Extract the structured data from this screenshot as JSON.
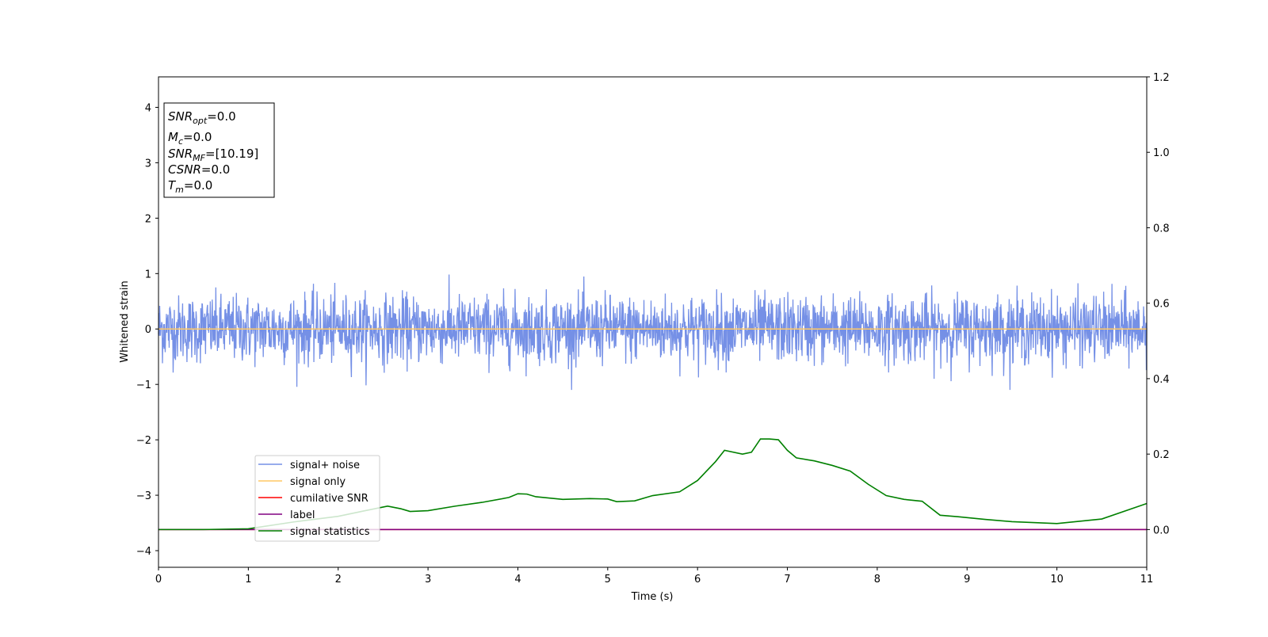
{
  "chart_data": {
    "type": "line",
    "xlabel": "Time (s)",
    "ylabel": "Whitened strain",
    "xlim": [
      0,
      11
    ],
    "ylim": [
      -4.3,
      4.55
    ],
    "y2lim": [
      -0.1,
      1.2
    ],
    "xticks": [
      "0",
      "1",
      "2",
      "3",
      "4",
      "5",
      "6",
      "7",
      "8",
      "9",
      "10",
      "11"
    ],
    "yticks": [
      "−4",
      "−3",
      "−2",
      "−1",
      "0",
      "1",
      "2",
      "3",
      "4"
    ],
    "y2ticks": [
      "0.0",
      "0.2",
      "0.4",
      "0.6",
      "0.8",
      "1.0",
      "1.2"
    ],
    "grid": false,
    "legend_position": "lower-left",
    "textbox": [
      {
        "base": "SNR",
        "sub": "opt",
        "value": "=0.0"
      },
      {
        "base": "M",
        "sub": "c",
        "value": "=0.0"
      },
      {
        "base": "SNR",
        "sub": "MF",
        "value": "=[10.19]"
      },
      {
        "base": "CSNR",
        "sub": "",
        "value": "=0.0"
      },
      {
        "base": "T",
        "sub": "m",
        "value": "=0.0"
      }
    ],
    "series": [
      {
        "name": "signal+ noise",
        "color": "#7590e6",
        "axis": "left",
        "noise_std": 0.3,
        "noise_peak": 1.1
      },
      {
        "name": "signal only",
        "color": "#ffc864",
        "axis": "left",
        "x": [
          0,
          11
        ],
        "y": [
          0,
          0
        ]
      },
      {
        "name": "cumilative SNR",
        "color": "#ff0000",
        "axis": "right",
        "x": [
          0,
          11
        ],
        "y": [
          0,
          0
        ]
      },
      {
        "name": "label",
        "color": "#800080",
        "axis": "right",
        "x": [
          0,
          11
        ],
        "y": [
          0,
          0
        ]
      },
      {
        "name": "signal statistics",
        "color": "#008000",
        "axis": "right",
        "x": [
          0,
          0.5,
          1.0,
          1.5,
          2.0,
          2.3,
          2.55,
          2.7,
          2.8,
          3.0,
          3.3,
          3.6,
          3.9,
          4.0,
          4.1,
          4.2,
          4.5,
          4.8,
          5.0,
          5.1,
          5.3,
          5.5,
          5.8,
          6.0,
          6.2,
          6.3,
          6.5,
          6.6,
          6.7,
          6.8,
          6.9,
          7.0,
          7.1,
          7.3,
          7.5,
          7.7,
          7.9,
          8.1,
          8.3,
          8.5,
          8.7,
          8.9,
          9.2,
          9.5,
          10.0,
          10.5,
          11.0
        ],
        "y": [
          0.0,
          0.0,
          0.002,
          0.02,
          0.035,
          0.05,
          0.062,
          0.055,
          0.048,
          0.05,
          0.062,
          0.072,
          0.085,
          0.095,
          0.094,
          0.087,
          0.08,
          0.082,
          0.081,
          0.074,
          0.076,
          0.09,
          0.1,
          0.13,
          0.18,
          0.21,
          0.2,
          0.205,
          0.24,
          0.24,
          0.238,
          0.21,
          0.19,
          0.182,
          0.17,
          0.155,
          0.12,
          0.09,
          0.08,
          0.075,
          0.038,
          0.034,
          0.027,
          0.021,
          0.016,
          0.028,
          0.069
        ]
      }
    ]
  }
}
